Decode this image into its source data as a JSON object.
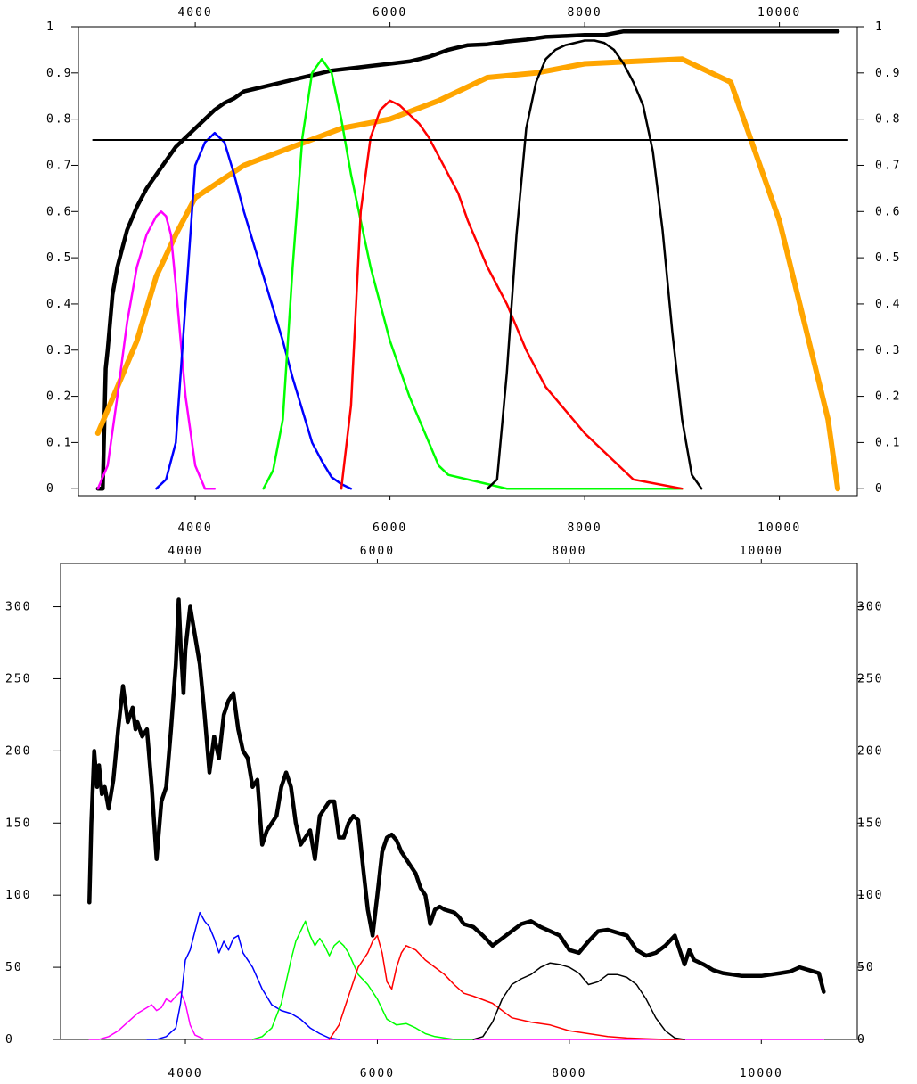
{
  "chart_data": [
    {
      "type": "line",
      "title": "",
      "xlabel": "",
      "ylabel": "",
      "xlim": [
        2800,
        10800
      ],
      "ylim": [
        -0.015,
        1.0
      ],
      "x_ticks": [
        4000,
        6000,
        8000,
        10000
      ],
      "y_ticks": [
        0,
        0.1,
        0.2,
        0.3,
        0.4,
        0.5,
        0.6,
        0.7,
        0.8,
        0.9,
        1
      ],
      "y_tick_labels": [
        "0",
        "0.1",
        "0.2",
        "0.3",
        "0.4",
        "0.5",
        "0.6",
        "0.7",
        "0.8",
        "0.9",
        "1"
      ],
      "x_tick_labels": [
        "4000",
        "6000",
        "8000",
        "10000"
      ],
      "grid": false,
      "series": [
        {
          "color": "#000000",
          "width": 4.5,
          "x": [
            3000,
            3050,
            3080,
            3100,
            3150,
            3200,
            3300,
            3400,
            3500,
            3600,
            3700,
            3800,
            3900,
            4000,
            4100,
            4200,
            4300,
            4400,
            4500,
            4600,
            4700,
            4800,
            4900,
            5000,
            5200,
            5400,
            5600,
            5800,
            6000,
            6200,
            6400,
            6600,
            6800,
            7000,
            7200,
            7400,
            7600,
            7800,
            8000,
            8200,
            8400,
            8600,
            9000,
            9500,
            10000,
            10500,
            10600
          ],
          "y": [
            0,
            0,
            0.26,
            0.3,
            0.42,
            0.48,
            0.56,
            0.61,
            0.65,
            0.68,
            0.71,
            0.74,
            0.76,
            0.78,
            0.8,
            0.82,
            0.835,
            0.845,
            0.86,
            0.865,
            0.87,
            0.875,
            0.88,
            0.885,
            0.895,
            0.905,
            0.91,
            0.915,
            0.92,
            0.925,
            0.935,
            0.95,
            0.96,
            0.962,
            0.968,
            0.972,
            0.978,
            0.98,
            0.982,
            0.982,
            0.99,
            0.99,
            0.99,
            0.99,
            0.99,
            0.99,
            0.99
          ]
        },
        {
          "color": "#ffa500",
          "width": 6,
          "x": [
            3000,
            3400,
            3600,
            3800,
            4000,
            4500,
            5000,
            5500,
            6000,
            6500,
            7000,
            7500,
            8000,
            8500,
            9000,
            9500,
            10000,
            10500,
            10600
          ],
          "y": [
            0.12,
            0.32,
            0.46,
            0.55,
            0.63,
            0.7,
            0.74,
            0.78,
            0.8,
            0.84,
            0.89,
            0.9,
            0.92,
            0.925,
            0.93,
            0.88,
            0.58,
            0.15,
            0
          ]
        },
        {
          "color": "#ff00ff",
          "width": 2.5,
          "x": [
            3000,
            3100,
            3200,
            3300,
            3400,
            3500,
            3600,
            3650,
            3700,
            3750,
            3800,
            3900,
            4000,
            4100,
            4200
          ],
          "y": [
            0,
            0.05,
            0.2,
            0.36,
            0.48,
            0.55,
            0.59,
            0.6,
            0.59,
            0.55,
            0.44,
            0.2,
            0.05,
            0,
            0
          ]
        },
        {
          "color": "#0000ff",
          "width": 2.5,
          "x": [
            3600,
            3700,
            3800,
            3900,
            4000,
            4100,
            4200,
            4300,
            4400,
            4500,
            4600,
            4700,
            4800,
            4900,
            5000,
            5100,
            5200,
            5300,
            5400,
            5500,
            5600
          ],
          "y": [
            0,
            0.02,
            0.1,
            0.4,
            0.7,
            0.75,
            0.77,
            0.75,
            0.68,
            0.6,
            0.53,
            0.46,
            0.39,
            0.32,
            0.24,
            0.17,
            0.1,
            0.06,
            0.025,
            0.01,
            0
          ]
        },
        {
          "color": "#00ff00",
          "width": 2.5,
          "x": [
            4700,
            4800,
            4900,
            5000,
            5100,
            5200,
            5300,
            5400,
            5500,
            5600,
            5800,
            6000,
            6200,
            6400,
            6500,
            6600,
            6800,
            7000,
            7200,
            9000
          ],
          "y": [
            0,
            0.04,
            0.15,
            0.48,
            0.76,
            0.9,
            0.93,
            0.9,
            0.8,
            0.68,
            0.48,
            0.32,
            0.2,
            0.1,
            0.05,
            0.03,
            0.02,
            0.01,
            0,
            0
          ]
        },
        {
          "color": "#ff0000",
          "width": 2.5,
          "x": [
            5500,
            5600,
            5700,
            5800,
            5900,
            6000,
            6100,
            6200,
            6300,
            6400,
            6500,
            6600,
            6700,
            6800,
            7000,
            7200,
            7400,
            7600,
            8000,
            8500,
            9000
          ],
          "y": [
            0,
            0.18,
            0.6,
            0.76,
            0.82,
            0.84,
            0.83,
            0.81,
            0.79,
            0.76,
            0.72,
            0.68,
            0.64,
            0.58,
            0.48,
            0.4,
            0.3,
            0.22,
            0.12,
            0.02,
            0
          ]
        },
        {
          "color": "#000000",
          "width": 2.5,
          "x": [
            7000,
            7100,
            7200,
            7300,
            7400,
            7500,
            7600,
            7700,
            7800,
            7900,
            8000,
            8100,
            8200,
            8300,
            8400,
            8500,
            8600,
            8700,
            8800,
            8900,
            9000,
            9100,
            9200
          ],
          "y": [
            0,
            0.02,
            0.25,
            0.55,
            0.78,
            0.88,
            0.93,
            0.95,
            0.96,
            0.965,
            0.97,
            0.97,
            0.965,
            0.95,
            0.92,
            0.88,
            0.83,
            0.73,
            0.56,
            0.34,
            0.15,
            0.03,
            0
          ]
        },
        {
          "color": "#000000",
          "width": 2,
          "x": [
            2950,
            10700
          ],
          "y": [
            0.755,
            0.755
          ]
        }
      ]
    },
    {
      "type": "line",
      "title": "",
      "xlabel": "",
      "ylabel": "",
      "xlim": [
        2700,
        11000
      ],
      "ylim": [
        0,
        330
      ],
      "x_ticks": [
        4000,
        6000,
        8000,
        10000
      ],
      "x_tick_labels": [
        "4000",
        "6000",
        "8000",
        "10000"
      ],
      "y_ticks": [
        0,
        50,
        100,
        150,
        200,
        250,
        300
      ],
      "y_tick_labels": [
        "0",
        "50",
        "100",
        "150",
        "200",
        "250",
        "300"
      ],
      "grid": false,
      "series": [
        {
          "color": "#000000",
          "width": 4.5,
          "x": [
            3000,
            3020,
            3050,
            3080,
            3100,
            3130,
            3160,
            3200,
            3250,
            3300,
            3350,
            3400,
            3450,
            3480,
            3500,
            3550,
            3600,
            3650,
            3700,
            3750,
            3800,
            3850,
            3900,
            3930,
            3950,
            3980,
            4000,
            4050,
            4100,
            4150,
            4200,
            4250,
            4300,
            4350,
            4400,
            4450,
            4500,
            4550,
            4600,
            4650,
            4700,
            4750,
            4800,
            4850,
            4900,
            4950,
            5000,
            5050,
            5100,
            5150,
            5200,
            5250,
            5300,
            5350,
            5400,
            5450,
            5500,
            5550,
            5600,
            5650,
            5700,
            5750,
            5800,
            5850,
            5900,
            5950,
            6000,
            6050,
            6100,
            6150,
            6200,
            6250,
            6300,
            6350,
            6400,
            6450,
            6500,
            6550,
            6600,
            6650,
            6700,
            6800,
            6850,
            6900,
            7000,
            7100,
            7200,
            7300,
            7400,
            7500,
            7600,
            7700,
            7800,
            7900,
            8000,
            8100,
            8200,
            8300,
            8400,
            8500,
            8600,
            8700,
            8800,
            8900,
            9000,
            9100,
            9200,
            9250,
            9300,
            9400,
            9500,
            9600,
            9700,
            9800,
            9900,
            10000,
            10100,
            10200,
            10300,
            10400,
            10500,
            10600,
            10650
          ],
          "y": [
            95,
            150,
            200,
            175,
            190,
            170,
            175,
            160,
            180,
            215,
            245,
            220,
            230,
            215,
            220,
            210,
            215,
            175,
            125,
            165,
            175,
            215,
            260,
            305,
            275,
            240,
            270,
            300,
            280,
            260,
            225,
            185,
            210,
            195,
            225,
            235,
            240,
            215,
            200,
            195,
            175,
            180,
            135,
            145,
            150,
            155,
            175,
            185,
            175,
            150,
            135,
            140,
            145,
            125,
            155,
            160,
            165,
            165,
            140,
            140,
            150,
            155,
            152,
            120,
            90,
            72,
            100,
            130,
            140,
            142,
            138,
            130,
            125,
            120,
            115,
            105,
            100,
            80,
            90,
            92,
            90,
            88,
            85,
            80,
            78,
            72,
            65,
            70,
            75,
            80,
            82,
            78,
            75,
            72,
            62,
            60,
            68,
            75,
            76,
            74,
            72,
            62,
            58,
            60,
            65,
            72,
            52,
            62,
            55,
            52,
            48,
            46,
            45,
            44,
            44,
            44,
            45,
            46,
            47,
            50,
            48,
            46,
            33
          ]
        },
        {
          "color": "#ff00ff",
          "width": 1.5,
          "x": [
            3000,
            3100,
            3200,
            3300,
            3400,
            3500,
            3600,
            3650,
            3700,
            3750,
            3800,
            3850,
            3900,
            3950,
            4000,
            4050,
            4100,
            4200,
            4400,
            5000,
            6000,
            8000,
            10650
          ],
          "y": [
            0,
            0,
            2,
            6,
            12,
            18,
            22,
            24,
            20,
            22,
            28,
            26,
            30,
            33,
            25,
            10,
            3,
            0,
            0,
            0,
            0,
            0,
            0
          ]
        },
        {
          "color": "#0000ff",
          "width": 1.5,
          "x": [
            3600,
            3700,
            3800,
            3900,
            3950,
            4000,
            4050,
            4100,
            4150,
            4200,
            4250,
            4300,
            4350,
            4400,
            4450,
            4500,
            4550,
            4600,
            4700,
            4800,
            4900,
            5000,
            5100,
            5200,
            5300,
            5400,
            5500,
            5600
          ],
          "y": [
            0,
            0,
            2,
            8,
            25,
            55,
            62,
            75,
            88,
            82,
            78,
            70,
            60,
            68,
            62,
            70,
            72,
            60,
            50,
            35,
            24,
            20,
            18,
            14,
            8,
            4,
            1,
            0
          ]
        },
        {
          "color": "#00ff00",
          "width": 1.5,
          "x": [
            4700,
            4800,
            4900,
            5000,
            5050,
            5100,
            5150,
            5200,
            5250,
            5300,
            5350,
            5400,
            5450,
            5500,
            5550,
            5600,
            5650,
            5700,
            5800,
            5900,
            6000,
            6100,
            6200,
            6300,
            6400,
            6500,
            6600,
            6700,
            6800,
            7000
          ],
          "y": [
            0,
            2,
            8,
            25,
            40,
            55,
            68,
            75,
            82,
            72,
            65,
            70,
            65,
            58,
            65,
            68,
            65,
            60,
            45,
            38,
            28,
            14,
            10,
            11,
            8,
            4,
            2,
            1,
            0,
            0
          ]
        },
        {
          "color": "#ff0000",
          "width": 1.5,
          "x": [
            5500,
            5600,
            5700,
            5800,
            5850,
            5900,
            5950,
            6000,
            6050,
            6100,
            6150,
            6200,
            6250,
            6300,
            6400,
            6500,
            6600,
            6700,
            6800,
            6900,
            7000,
            7200,
            7400,
            7600,
            7800,
            8000,
            8200,
            8400,
            8600,
            8800,
            9000,
            9200
          ],
          "y": [
            0,
            10,
            30,
            50,
            55,
            60,
            68,
            72,
            60,
            40,
            35,
            50,
            60,
            65,
            62,
            55,
            50,
            45,
            38,
            32,
            30,
            25,
            15,
            12,
            10,
            6,
            4,
            2,
            1,
            0.5,
            0,
            0
          ]
        },
        {
          "color": "#000000",
          "width": 1.5,
          "x": [
            7000,
            7100,
            7200,
            7300,
            7400,
            7500,
            7600,
            7700,
            7800,
            7900,
            8000,
            8100,
            8200,
            8300,
            8400,
            8500,
            8600,
            8700,
            8800,
            8900,
            9000,
            9100,
            9200
          ],
          "y": [
            0,
            2,
            12,
            28,
            38,
            42,
            45,
            50,
            53,
            52,
            50,
            46,
            38,
            40,
            45,
            45,
            43,
            38,
            28,
            15,
            6,
            1,
            0
          ]
        }
      ]
    }
  ]
}
